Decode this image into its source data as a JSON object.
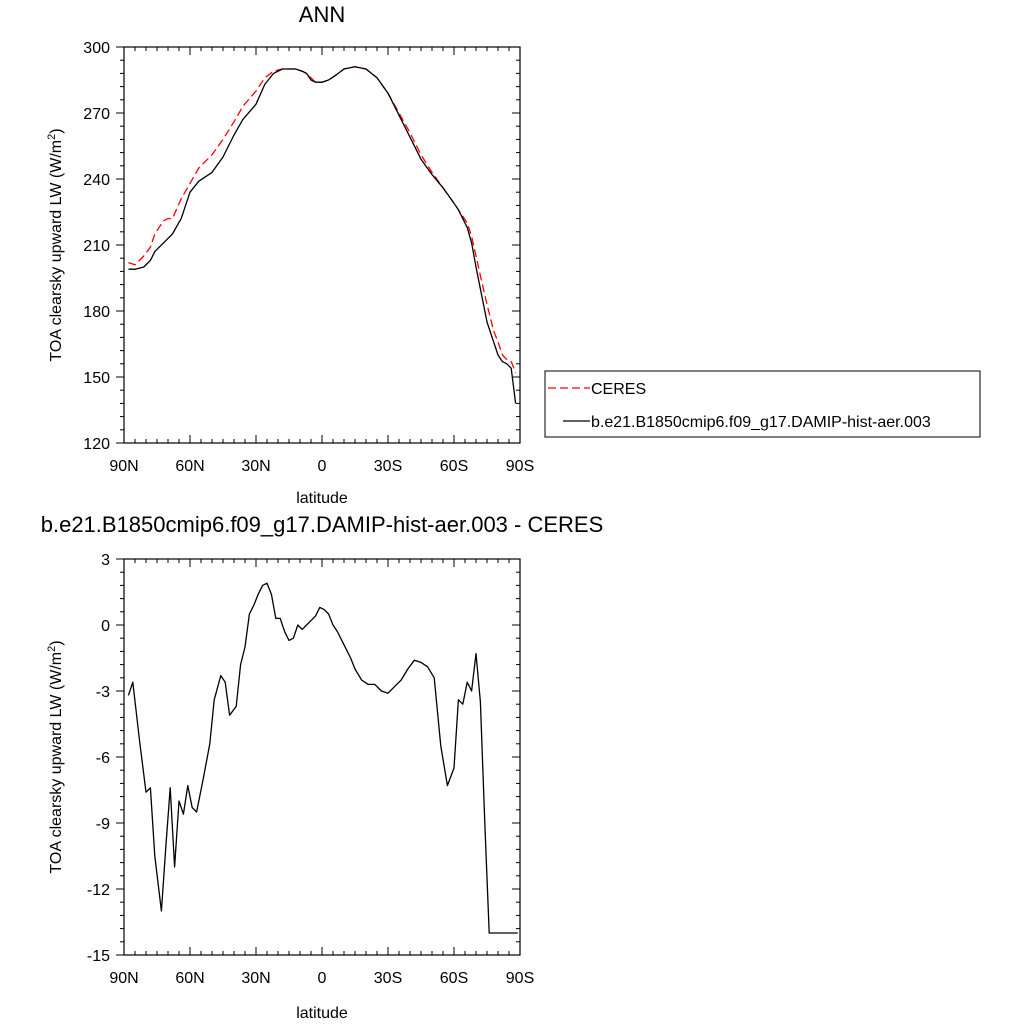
{
  "chart_data": [
    {
      "type": "line",
      "title": "ANN",
      "xlabel": "latitude",
      "ylabel": "TOA clearsky upward LW (W/m",
      "ylabel_sup": "2",
      "ylabel_end": ")",
      "xlim": [
        90,
        -90
      ],
      "ylim": [
        120,
        300
      ],
      "xticks": [
        90,
        60,
        30,
        0,
        -30,
        -60,
        -90
      ],
      "xtick_labels": [
        "90N",
        "60N",
        "30N",
        "0",
        "30S",
        "60S",
        "90S"
      ],
      "yticks": [
        120,
        150,
        180,
        210,
        240,
        270,
        300
      ],
      "ytick_labels": [
        "120",
        "150",
        "180",
        "210",
        "240",
        "270",
        "300"
      ],
      "grid": false,
      "legend_position": "right",
      "series": [
        {
          "name": "CERES",
          "color": "#ff0000",
          "dash": "dashed",
          "x": [
            88,
            85,
            81,
            78,
            76,
            72,
            70,
            68,
            64,
            60,
            56,
            50,
            45,
            40,
            36,
            30,
            26,
            22,
            18,
            15,
            12,
            9,
            7,
            5,
            3,
            0,
            -3,
            -6,
            -10,
            -15,
            -20,
            -25,
            -30,
            -35,
            -40,
            -45,
            -50,
            -55,
            -60,
            -62,
            -64,
            -66,
            -68,
            -70,
            -72,
            -75,
            -78,
            -80,
            -82,
            -84,
            -86,
            -88
          ],
          "values": [
            202,
            201,
            205,
            209,
            215,
            221,
            222,
            222,
            231,
            238,
            245,
            251,
            258,
            266,
            273,
            280,
            286,
            289,
            290,
            290,
            290,
            289,
            288,
            286,
            284,
            284,
            285,
            287,
            290,
            291,
            290,
            286,
            279,
            270,
            261,
            251,
            243,
            236,
            229,
            226,
            223,
            220,
            214,
            205,
            196,
            183,
            171,
            166,
            160,
            158,
            157,
            152
          ]
        },
        {
          "name": "b.e21.B1850cmip6.f09_g17.DAMIP-hist-aer.003",
          "color": "#000000",
          "dash": "solid",
          "x": [
            88,
            85,
            81,
            78,
            76,
            72,
            70,
            68,
            64,
            60,
            56,
            50,
            45,
            40,
            36,
            30,
            26,
            22,
            18,
            15,
            12,
            9,
            7,
            5,
            3,
            0,
            -3,
            -6,
            -10,
            -15,
            -20,
            -25,
            -30,
            -35,
            -40,
            -45,
            -50,
            -55,
            -60,
            -62,
            -64,
            -66,
            -68,
            -70,
            -72,
            -75,
            -78,
            -80,
            -82,
            -84,
            -86,
            -88
          ],
          "values": [
            199,
            199,
            200,
            203,
            207,
            211,
            213,
            215,
            222,
            234,
            239,
            243,
            250,
            260,
            267,
            274,
            283,
            288,
            290,
            290,
            290,
            289,
            288,
            285,
            284,
            284,
            285,
            287,
            290,
            291,
            290,
            286,
            279,
            269,
            259,
            249,
            242,
            236,
            229,
            226,
            222,
            218,
            211,
            200,
            190,
            175,
            166,
            160,
            157,
            156,
            154,
            138
          ]
        }
      ]
    },
    {
      "type": "line",
      "title": "b.e21.B1850cmip6.f09_g17.DAMIP-hist-aer.003 - CERES",
      "xlabel": "latitude",
      "ylabel": "TOA clearsky upward LW (W/m",
      "ylabel_sup": "2",
      "ylabel_end": ")",
      "xlim": [
        90,
        -90
      ],
      "ylim": [
        -15,
        3
      ],
      "xticks": [
        90,
        60,
        30,
        0,
        -30,
        -60,
        -90
      ],
      "xtick_labels": [
        "90N",
        "60N",
        "30N",
        "0",
        "30S",
        "60S",
        "90S"
      ],
      "yticks": [
        -15,
        -12,
        -9,
        -6,
        -3,
        0,
        3
      ],
      "ytick_labels": [
        "-15",
        "-12",
        "-9",
        "-6",
        "-3",
        "0",
        "3"
      ],
      "grid": false,
      "series": [
        {
          "color": "#000000",
          "dash": "solid",
          "x": [
            88,
            86,
            83,
            80,
            78,
            76,
            73,
            71,
            69,
            67,
            65,
            63,
            61,
            59,
            57,
            54,
            51,
            49,
            46,
            44,
            42,
            39,
            37,
            35,
            33,
            31,
            29,
            27,
            25,
            23,
            21,
            19,
            17,
            15,
            13,
            11,
            9,
            7,
            5,
            3,
            1,
            -1,
            -3,
            -5,
            -7,
            -9,
            -11,
            -13,
            -15,
            -18,
            -21,
            -24,
            -27,
            -30,
            -33,
            -36,
            -39,
            -42,
            -45,
            -48,
            -51,
            -54,
            -57,
            -60,
            -62,
            -64,
            -66,
            -68,
            -70,
            -72,
            -74,
            -76,
            -78,
            -80,
            -82,
            -84,
            -86,
            -88,
            -89
          ],
          "values": [
            -3.2,
            -2.6,
            -5.2,
            -7.6,
            -7.4,
            -10.5,
            -13.0,
            -10.1,
            -7.4,
            -11.0,
            -8.0,
            -8.6,
            -7.3,
            -8.3,
            -8.5,
            -7.0,
            -5.4,
            -3.4,
            -2.3,
            -2.6,
            -4.1,
            -3.7,
            -1.8,
            -1.0,
            0.5,
            0.9,
            1.4,
            1.8,
            1.9,
            1.4,
            0.3,
            0.3,
            -0.3,
            -0.7,
            -0.6,
            0.0,
            -0.2,
            0.0,
            0.2,
            0.4,
            0.8,
            0.7,
            0.5,
            0.0,
            -0.3,
            -0.7,
            -1.1,
            -1.5,
            -2.0,
            -2.5,
            -2.7,
            -2.7,
            -3.0,
            -3.1,
            -2.8,
            -2.5,
            -2.0,
            -1.6,
            -1.7,
            -1.9,
            -2.4,
            -5.5,
            -7.3,
            -6.5,
            -3.4,
            -3.6,
            -2.6,
            -3.0,
            -1.3,
            -3.5,
            -9.0,
            -14.0,
            -14.0,
            -14.0,
            -14.0,
            -14.0,
            -14.0,
            -14.0,
            -14.0
          ]
        }
      ]
    }
  ]
}
